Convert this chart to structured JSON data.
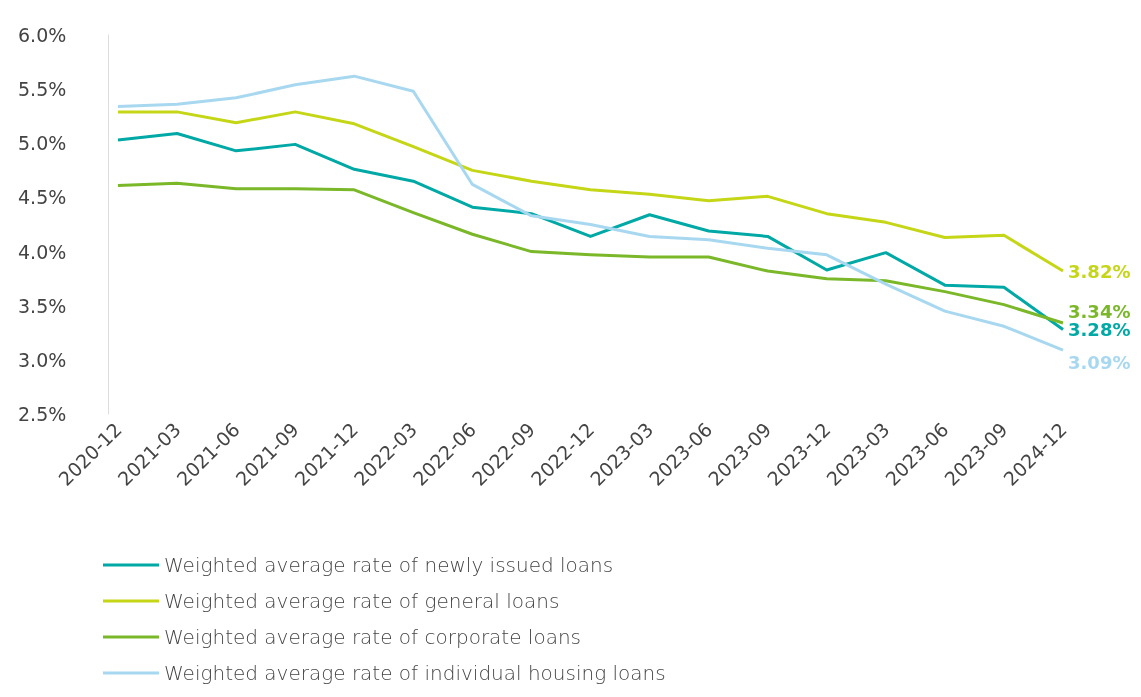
{
  "chart_data": {
    "type": "line",
    "categories": [
      "2020-12",
      "2021-03",
      "2021-06",
      "2021-09",
      "2021-12",
      "2022-03",
      "2022-06",
      "2022-09",
      "2022-12",
      "2023-03",
      "2023-06",
      "2023-09",
      "2023-12",
      "2023-03",
      "2023-06",
      "2023-09",
      "2024-12"
    ],
    "series": [
      {
        "name": "Weighted average rate of newly issued loans",
        "color": "#00a9a5",
        "values": [
          5.03,
          5.09,
          4.93,
          4.99,
          4.76,
          4.65,
          4.41,
          4.35,
          4.14,
          4.34,
          4.19,
          4.14,
          3.83,
          3.99,
          3.69,
          3.67,
          3.28
        ],
        "value_labels": [
          null,
          null,
          null,
          null,
          null,
          null,
          null,
          null,
          null,
          null,
          null,
          null,
          null,
          null,
          null,
          null,
          "3.28%"
        ]
      },
      {
        "name": "Weighted average rate of general loans",
        "color": "#c5d616",
        "values": [
          5.29,
          5.29,
          5.19,
          5.29,
          5.18,
          4.97,
          4.75,
          4.65,
          4.57,
          4.53,
          4.47,
          4.51,
          4.35,
          4.27,
          4.13,
          4.15,
          3.82
        ],
        "value_labels": [
          null,
          null,
          null,
          null,
          null,
          null,
          null,
          null,
          null,
          null,
          null,
          null,
          null,
          null,
          null,
          null,
          "3.82%"
        ]
      },
      {
        "name": "Weighted average rate of corporate loans",
        "color": "#7ab829",
        "values": [
          4.61,
          4.63,
          4.58,
          4.58,
          4.57,
          4.36,
          4.16,
          4.0,
          3.97,
          3.95,
          3.95,
          3.82,
          3.75,
          3.73,
          3.63,
          3.51,
          3.34
        ],
        "value_labels": [
          null,
          null,
          null,
          null,
          null,
          null,
          null,
          null,
          null,
          null,
          null,
          null,
          null,
          null,
          null,
          null,
          "3.34%"
        ]
      },
      {
        "name": "Weighted average rate of individual housing loans",
        "color": "#a8d8f0",
        "values": [
          5.34,
          5.36,
          5.42,
          5.54,
          5.62,
          5.48,
          4.62,
          4.33,
          4.25,
          4.14,
          4.11,
          4.03,
          3.97,
          3.7,
          3.45,
          3.31,
          3.09
        ],
        "value_labels": [
          null,
          null,
          null,
          null,
          null,
          null,
          null,
          null,
          null,
          null,
          null,
          null,
          null,
          null,
          null,
          null,
          "3.09%"
        ]
      }
    ],
    "ylim": [
      2.5,
      6.0
    ],
    "yticks": [
      {
        "value": 2.5,
        "label": "2.5%"
      },
      {
        "value": 3.0,
        "label": "3.0%"
      },
      {
        "value": 3.5,
        "label": "3.5%"
      },
      {
        "value": 4.0,
        "label": "4.0%"
      },
      {
        "value": 4.5,
        "label": "4.5%"
      },
      {
        "value": 5.0,
        "label": "5.0%"
      },
      {
        "value": 5.5,
        "label": "5.5%"
      },
      {
        "value": 6.0,
        "label": "6.0%"
      }
    ],
    "grid": false,
    "legend": "bottom",
    "marker": "none",
    "line_style": "solid"
  }
}
